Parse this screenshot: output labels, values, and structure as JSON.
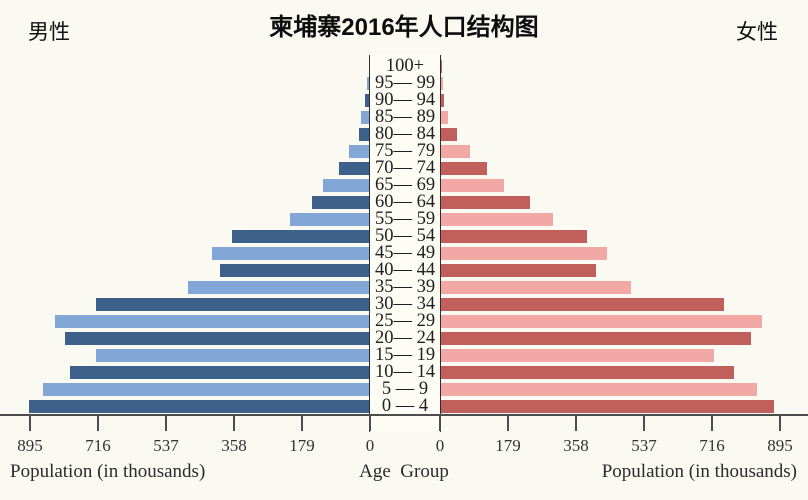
{
  "title": "柬埔寨2016年人口结构图",
  "male_label": "男性",
  "female_label": "女性",
  "axis": {
    "left_caption": "Population (in thousands)",
    "center_caption": "Age  Group",
    "right_caption": "Population (in thousands)",
    "tick_values": [
      0,
      179,
      358,
      537,
      716,
      895
    ]
  },
  "colors": {
    "male_dark": "#3e618c",
    "male_light": "#82a7d6",
    "female_dark": "#c05f5c",
    "female_light": "#f2a9a5",
    "background": "#fafaf2",
    "axis": "#4d4d4d"
  },
  "chart_data": {
    "type": "bar",
    "subtype": "population-pyramid",
    "title": "柬埔寨2016年人口结构图",
    "unit": "thousands",
    "xlim": [
      0,
      895
    ],
    "xticks": [
      0,
      179,
      358,
      537,
      716,
      895
    ],
    "legend_position": "none",
    "grid": false,
    "age_groups_top_to_bottom": [
      "100+",
      "95— 99",
      "90— 94",
      "85— 89",
      "80— 84",
      "75— 79",
      "70— 74",
      "65— 69",
      "60— 64",
      "55— 59",
      "50— 54",
      "45— 49",
      "40— 44",
      "35— 39",
      "30— 34",
      "25— 29",
      "20— 24",
      "15— 19",
      "10— 14",
      "5 — 9",
      "0 — 4"
    ],
    "series": [
      {
        "name": "男性 (Male)",
        "side": "left",
        "values": [
          3,
          7,
          13,
          24,
          30,
          55,
          81,
          124,
          153,
          211,
          364,
          415,
          394,
          478,
          722,
          829,
          803,
          720,
          790,
          861,
          898
        ]
      },
      {
        "name": "女性 (Female)",
        "side": "right",
        "values": [
          2,
          4,
          8,
          18,
          42,
          76,
          120,
          165,
          234,
          295,
          385,
          438,
          409,
          500,
          744,
          845,
          815,
          718,
          771,
          831,
          876
        ]
      }
    ]
  }
}
